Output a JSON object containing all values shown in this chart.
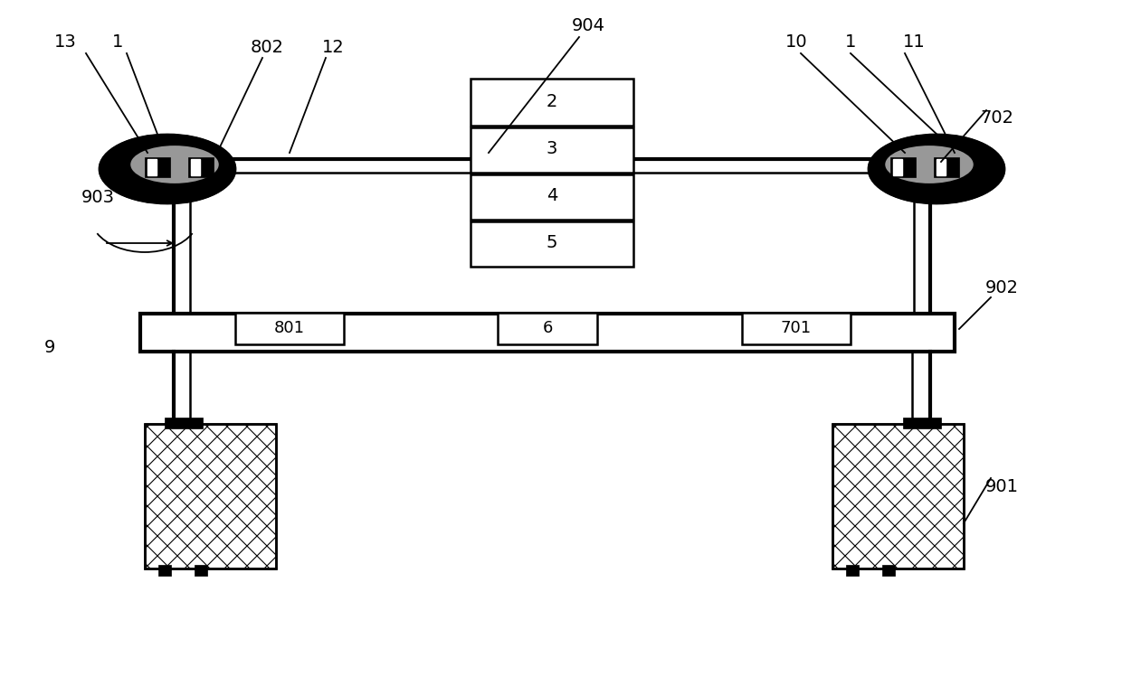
{
  "bg_color": "#ffffff",
  "line_color": "#000000",
  "figsize": [
    12.4,
    7.59
  ],
  "dpi": 100,
  "lw_beam": 3.0,
  "lw_main": 1.8,
  "lw_thin": 1.0,
  "fs_label": 14
}
